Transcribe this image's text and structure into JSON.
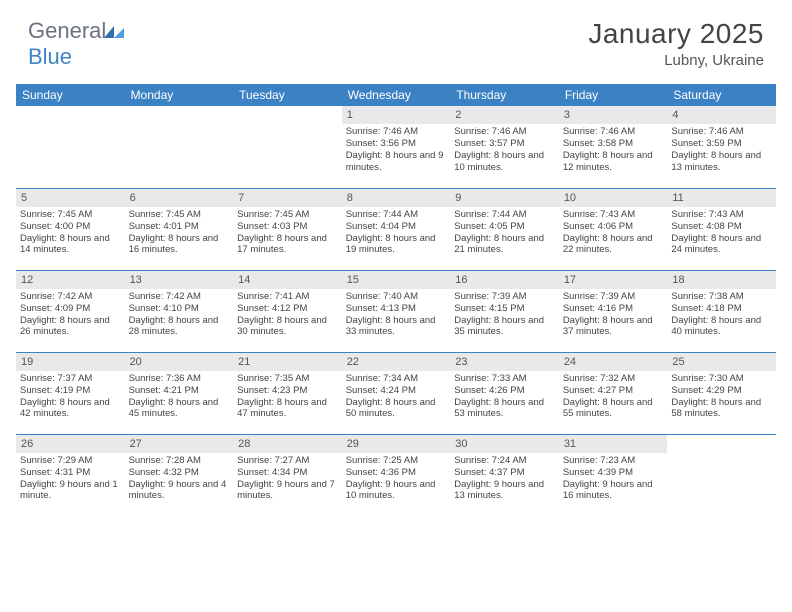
{
  "brand": {
    "name_grey": "General",
    "name_blue": "Blue"
  },
  "title": "January 2025",
  "location": "Lubny, Ukraine",
  "weekdays": [
    "Sunday",
    "Monday",
    "Tuesday",
    "Wednesday",
    "Thursday",
    "Friday",
    "Saturday"
  ],
  "colors": {
    "header_bg": "#3b82c4",
    "daynum_bg": "#e9e9e9",
    "rule": "#3b82c4"
  },
  "weeks": [
    [
      null,
      null,
      null,
      {
        "n": "1",
        "sunrise": "7:46 AM",
        "sunset": "3:56 PM",
        "daylight": "8 hours and 9 minutes."
      },
      {
        "n": "2",
        "sunrise": "7:46 AM",
        "sunset": "3:57 PM",
        "daylight": "8 hours and 10 minutes."
      },
      {
        "n": "3",
        "sunrise": "7:46 AM",
        "sunset": "3:58 PM",
        "daylight": "8 hours and 12 minutes."
      },
      {
        "n": "4",
        "sunrise": "7:46 AM",
        "sunset": "3:59 PM",
        "daylight": "8 hours and 13 minutes."
      }
    ],
    [
      {
        "n": "5",
        "sunrise": "7:45 AM",
        "sunset": "4:00 PM",
        "daylight": "8 hours and 14 minutes."
      },
      {
        "n": "6",
        "sunrise": "7:45 AM",
        "sunset": "4:01 PM",
        "daylight": "8 hours and 16 minutes."
      },
      {
        "n": "7",
        "sunrise": "7:45 AM",
        "sunset": "4:03 PM",
        "daylight": "8 hours and 17 minutes."
      },
      {
        "n": "8",
        "sunrise": "7:44 AM",
        "sunset": "4:04 PM",
        "daylight": "8 hours and 19 minutes."
      },
      {
        "n": "9",
        "sunrise": "7:44 AM",
        "sunset": "4:05 PM",
        "daylight": "8 hours and 21 minutes."
      },
      {
        "n": "10",
        "sunrise": "7:43 AM",
        "sunset": "4:06 PM",
        "daylight": "8 hours and 22 minutes."
      },
      {
        "n": "11",
        "sunrise": "7:43 AM",
        "sunset": "4:08 PM",
        "daylight": "8 hours and 24 minutes."
      }
    ],
    [
      {
        "n": "12",
        "sunrise": "7:42 AM",
        "sunset": "4:09 PM",
        "daylight": "8 hours and 26 minutes."
      },
      {
        "n": "13",
        "sunrise": "7:42 AM",
        "sunset": "4:10 PM",
        "daylight": "8 hours and 28 minutes."
      },
      {
        "n": "14",
        "sunrise": "7:41 AM",
        "sunset": "4:12 PM",
        "daylight": "8 hours and 30 minutes."
      },
      {
        "n": "15",
        "sunrise": "7:40 AM",
        "sunset": "4:13 PM",
        "daylight": "8 hours and 33 minutes."
      },
      {
        "n": "16",
        "sunrise": "7:39 AM",
        "sunset": "4:15 PM",
        "daylight": "8 hours and 35 minutes."
      },
      {
        "n": "17",
        "sunrise": "7:39 AM",
        "sunset": "4:16 PM",
        "daylight": "8 hours and 37 minutes."
      },
      {
        "n": "18",
        "sunrise": "7:38 AM",
        "sunset": "4:18 PM",
        "daylight": "8 hours and 40 minutes."
      }
    ],
    [
      {
        "n": "19",
        "sunrise": "7:37 AM",
        "sunset": "4:19 PM",
        "daylight": "8 hours and 42 minutes."
      },
      {
        "n": "20",
        "sunrise": "7:36 AM",
        "sunset": "4:21 PM",
        "daylight": "8 hours and 45 minutes."
      },
      {
        "n": "21",
        "sunrise": "7:35 AM",
        "sunset": "4:23 PM",
        "daylight": "8 hours and 47 minutes."
      },
      {
        "n": "22",
        "sunrise": "7:34 AM",
        "sunset": "4:24 PM",
        "daylight": "8 hours and 50 minutes."
      },
      {
        "n": "23",
        "sunrise": "7:33 AM",
        "sunset": "4:26 PM",
        "daylight": "8 hours and 53 minutes."
      },
      {
        "n": "24",
        "sunrise": "7:32 AM",
        "sunset": "4:27 PM",
        "daylight": "8 hours and 55 minutes."
      },
      {
        "n": "25",
        "sunrise": "7:30 AM",
        "sunset": "4:29 PM",
        "daylight": "8 hours and 58 minutes."
      }
    ],
    [
      {
        "n": "26",
        "sunrise": "7:29 AM",
        "sunset": "4:31 PM",
        "daylight": "9 hours and 1 minute."
      },
      {
        "n": "27",
        "sunrise": "7:28 AM",
        "sunset": "4:32 PM",
        "daylight": "9 hours and 4 minutes."
      },
      {
        "n": "28",
        "sunrise": "7:27 AM",
        "sunset": "4:34 PM",
        "daylight": "9 hours and 7 minutes."
      },
      {
        "n": "29",
        "sunrise": "7:25 AM",
        "sunset": "4:36 PM",
        "daylight": "9 hours and 10 minutes."
      },
      {
        "n": "30",
        "sunrise": "7:24 AM",
        "sunset": "4:37 PM",
        "daylight": "9 hours and 13 minutes."
      },
      {
        "n": "31",
        "sunrise": "7:23 AM",
        "sunset": "4:39 PM",
        "daylight": "9 hours and 16 minutes."
      },
      null
    ]
  ],
  "labels": {
    "sunrise": "Sunrise:",
    "sunset": "Sunset:",
    "daylight": "Daylight:"
  }
}
